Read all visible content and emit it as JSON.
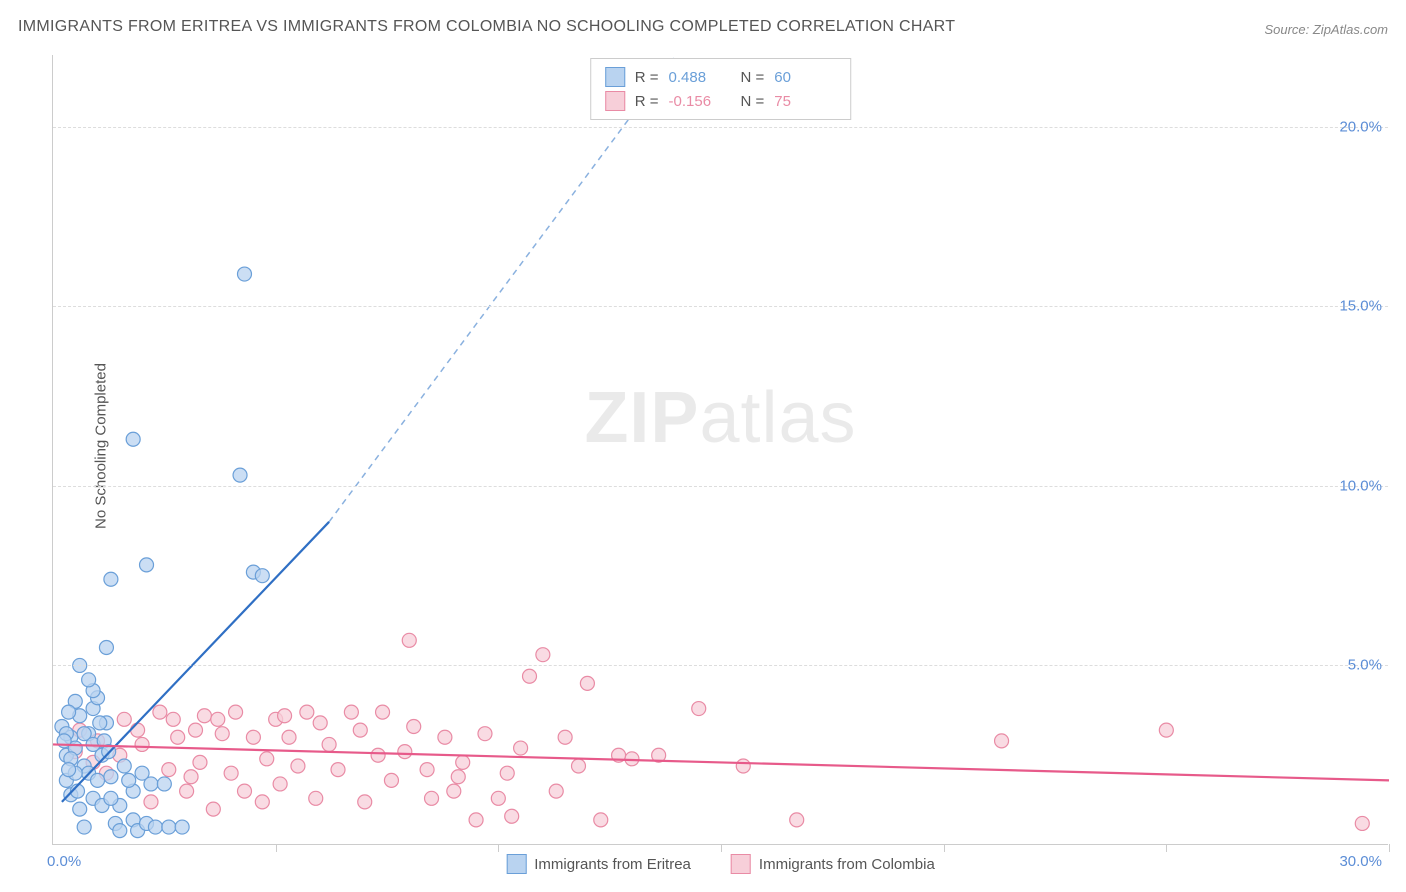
{
  "title": "IMMIGRANTS FROM ERITREA VS IMMIGRANTS FROM COLOMBIA NO SCHOOLING COMPLETED CORRELATION CHART",
  "source": "Source: ZipAtlas.com",
  "ylabel": "No Schooling Completed",
  "watermark_a": "ZIP",
  "watermark_b": "atlas",
  "chart": {
    "type": "scatter",
    "xlim": [
      0,
      30
    ],
    "ylim": [
      0,
      22
    ],
    "x_origin_label": "0.0%",
    "x_max_label": "30.0%",
    "y_ticks": [
      5.0,
      10.0,
      15.0,
      20.0
    ],
    "y_tick_labels": [
      "5.0%",
      "10.0%",
      "15.0%",
      "20.0%"
    ],
    "x_ticks": [
      5,
      10,
      15,
      20,
      25,
      30
    ],
    "grid_color": "#dddddd",
    "axis_color": "#cccccc",
    "background_color": "#ffffff",
    "series": [
      {
        "name": "Immigrants from Eritrea",
        "fill": "#b9d3f0",
        "stroke": "#6a9fd8",
        "line_color": "#2f6fc4",
        "dash_color": "#8ab1df",
        "r_label": "R = ",
        "r_value": "0.488",
        "n_label": "N = ",
        "n_value": "60",
        "trend_solid": {
          "x1": 0.2,
          "y1": 1.2,
          "x2": 6.2,
          "y2": 9.0
        },
        "trend_dash": {
          "x1": 6.2,
          "y1": 9.0,
          "x2": 14.0,
          "y2": 22.0
        },
        "points": [
          [
            0.3,
            2.5
          ],
          [
            0.4,
            3.0
          ],
          [
            0.5,
            2.7
          ],
          [
            0.3,
            1.8
          ],
          [
            0.2,
            3.3
          ],
          [
            0.6,
            3.6
          ],
          [
            0.7,
            2.2
          ],
          [
            0.5,
            4.0
          ],
          [
            0.8,
            3.1
          ],
          [
            0.8,
            2.0
          ],
          [
            0.4,
            2.4
          ],
          [
            0.9,
            3.8
          ],
          [
            0.3,
            3.1
          ],
          [
            0.5,
            2.0
          ],
          [
            1.0,
            4.1
          ],
          [
            0.9,
            1.3
          ],
          [
            1.1,
            2.5
          ],
          [
            1.2,
            3.4
          ],
          [
            1.3,
            1.9
          ],
          [
            1.4,
            0.6
          ],
          [
            1.5,
            1.1
          ],
          [
            1.5,
            0.4
          ],
          [
            1.6,
            2.2
          ],
          [
            1.8,
            0.7
          ],
          [
            1.8,
            1.5
          ],
          [
            1.9,
            0.4
          ],
          [
            2.0,
            2.0
          ],
          [
            2.1,
            0.6
          ],
          [
            2.2,
            1.7
          ],
          [
            2.3,
            0.5
          ],
          [
            0.6,
            5.0
          ],
          [
            2.6,
            0.5
          ],
          [
            2.9,
            0.5
          ],
          [
            1.3,
            7.4
          ],
          [
            1.2,
            5.5
          ],
          [
            2.1,
            7.8
          ],
          [
            4.5,
            7.6
          ],
          [
            4.7,
            7.5
          ],
          [
            1.8,
            11.3
          ],
          [
            4.2,
            10.3
          ],
          [
            4.3,
            15.9
          ],
          [
            0.4,
            1.4
          ],
          [
            0.6,
            1.0
          ],
          [
            0.7,
            0.5
          ],
          [
            1.0,
            1.8
          ],
          [
            1.1,
            1.1
          ],
          [
            1.3,
            1.3
          ],
          [
            1.7,
            1.8
          ],
          [
            2.5,
            1.7
          ],
          [
            0.9,
            4.3
          ],
          [
            0.35,
            2.1
          ],
          [
            0.55,
            1.5
          ],
          [
            0.7,
            3.1
          ],
          [
            0.9,
            2.8
          ],
          [
            0.35,
            3.7
          ],
          [
            0.8,
            4.6
          ],
          [
            0.25,
            2.9
          ],
          [
            1.15,
            2.9
          ],
          [
            1.05,
            3.4
          ],
          [
            1.25,
            2.6
          ]
        ]
      },
      {
        "name": "Immigrants from Colombia",
        "fill": "#f7cfd9",
        "stroke": "#e98ba5",
        "line_color": "#e75a8a",
        "r_label": "R = ",
        "r_value": "-0.156",
        "n_label": "N = ",
        "n_value": "75",
        "trend_solid": {
          "x1": 0.0,
          "y1": 2.8,
          "x2": 30.0,
          "y2": 1.8
        },
        "points": [
          [
            0.5,
            2.6
          ],
          [
            0.6,
            3.2
          ],
          [
            0.9,
            2.3
          ],
          [
            1.0,
            2.9
          ],
          [
            1.2,
            2.0
          ],
          [
            1.5,
            2.5
          ],
          [
            1.6,
            3.5
          ],
          [
            2.0,
            2.8
          ],
          [
            2.2,
            1.2
          ],
          [
            2.4,
            3.7
          ],
          [
            2.6,
            2.1
          ],
          [
            2.8,
            3.0
          ],
          [
            3.0,
            1.5
          ],
          [
            3.2,
            3.2
          ],
          [
            3.3,
            2.3
          ],
          [
            3.4,
            3.6
          ],
          [
            3.6,
            1.0
          ],
          [
            3.8,
            3.1
          ],
          [
            4.0,
            2.0
          ],
          [
            4.1,
            3.7
          ],
          [
            4.3,
            1.5
          ],
          [
            4.5,
            3.0
          ],
          [
            4.8,
            2.4
          ],
          [
            5.0,
            3.5
          ],
          [
            5.1,
            1.7
          ],
          [
            5.3,
            3.0
          ],
          [
            5.5,
            2.2
          ],
          [
            5.7,
            3.7
          ],
          [
            5.9,
            1.3
          ],
          [
            6.2,
            2.8
          ],
          [
            6.4,
            2.1
          ],
          [
            6.7,
            3.7
          ],
          [
            7.0,
            1.2
          ],
          [
            7.3,
            2.5
          ],
          [
            7.4,
            3.7
          ],
          [
            7.6,
            1.8
          ],
          [
            8.0,
            5.7
          ],
          [
            8.1,
            3.3
          ],
          [
            8.4,
            2.1
          ],
          [
            8.5,
            1.3
          ],
          [
            8.8,
            3.0
          ],
          [
            9.0,
            1.5
          ],
          [
            9.2,
            2.3
          ],
          [
            9.5,
            0.7
          ],
          [
            9.7,
            3.1
          ],
          [
            10.0,
            1.3
          ],
          [
            10.3,
            0.8
          ],
          [
            10.5,
            2.7
          ],
          [
            10.7,
            4.7
          ],
          [
            11.0,
            5.3
          ],
          [
            11.3,
            1.5
          ],
          [
            11.5,
            3.0
          ],
          [
            11.8,
            2.2
          ],
          [
            12.0,
            4.5
          ],
          [
            12.3,
            0.7
          ],
          [
            13.0,
            2.4
          ],
          [
            13.6,
            2.5
          ],
          [
            14.5,
            3.8
          ],
          [
            15.5,
            2.2
          ],
          [
            16.7,
            0.7
          ],
          [
            21.3,
            2.9
          ],
          [
            25.0,
            3.2
          ],
          [
            29.4,
            0.6
          ],
          [
            1.9,
            3.2
          ],
          [
            2.7,
            3.5
          ],
          [
            3.1,
            1.9
          ],
          [
            4.7,
            1.2
          ],
          [
            6.0,
            3.4
          ],
          [
            6.9,
            3.2
          ],
          [
            7.9,
            2.6
          ],
          [
            9.1,
            1.9
          ],
          [
            10.2,
            2.0
          ],
          [
            12.7,
            2.5
          ],
          [
            5.2,
            3.6
          ],
          [
            3.7,
            3.5
          ]
        ]
      }
    ]
  }
}
